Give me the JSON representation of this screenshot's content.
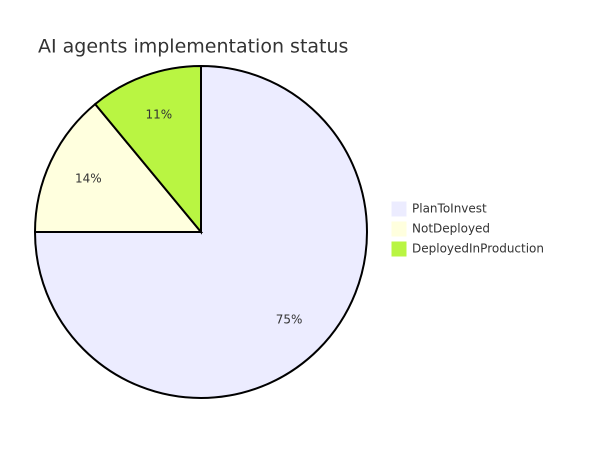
{
  "chart_data": {
    "type": "pie",
    "title": "AI agents implementation status",
    "categories": [
      "PlanToInvest",
      "NotDeployed",
      "DeployedInProduction"
    ],
    "values": [
      75,
      14,
      11
    ],
    "value_labels": [
      "75%",
      "14%",
      "11%"
    ],
    "colors": [
      "#ececff",
      "#ffffde",
      "#b9f542"
    ],
    "legend": "right"
  }
}
